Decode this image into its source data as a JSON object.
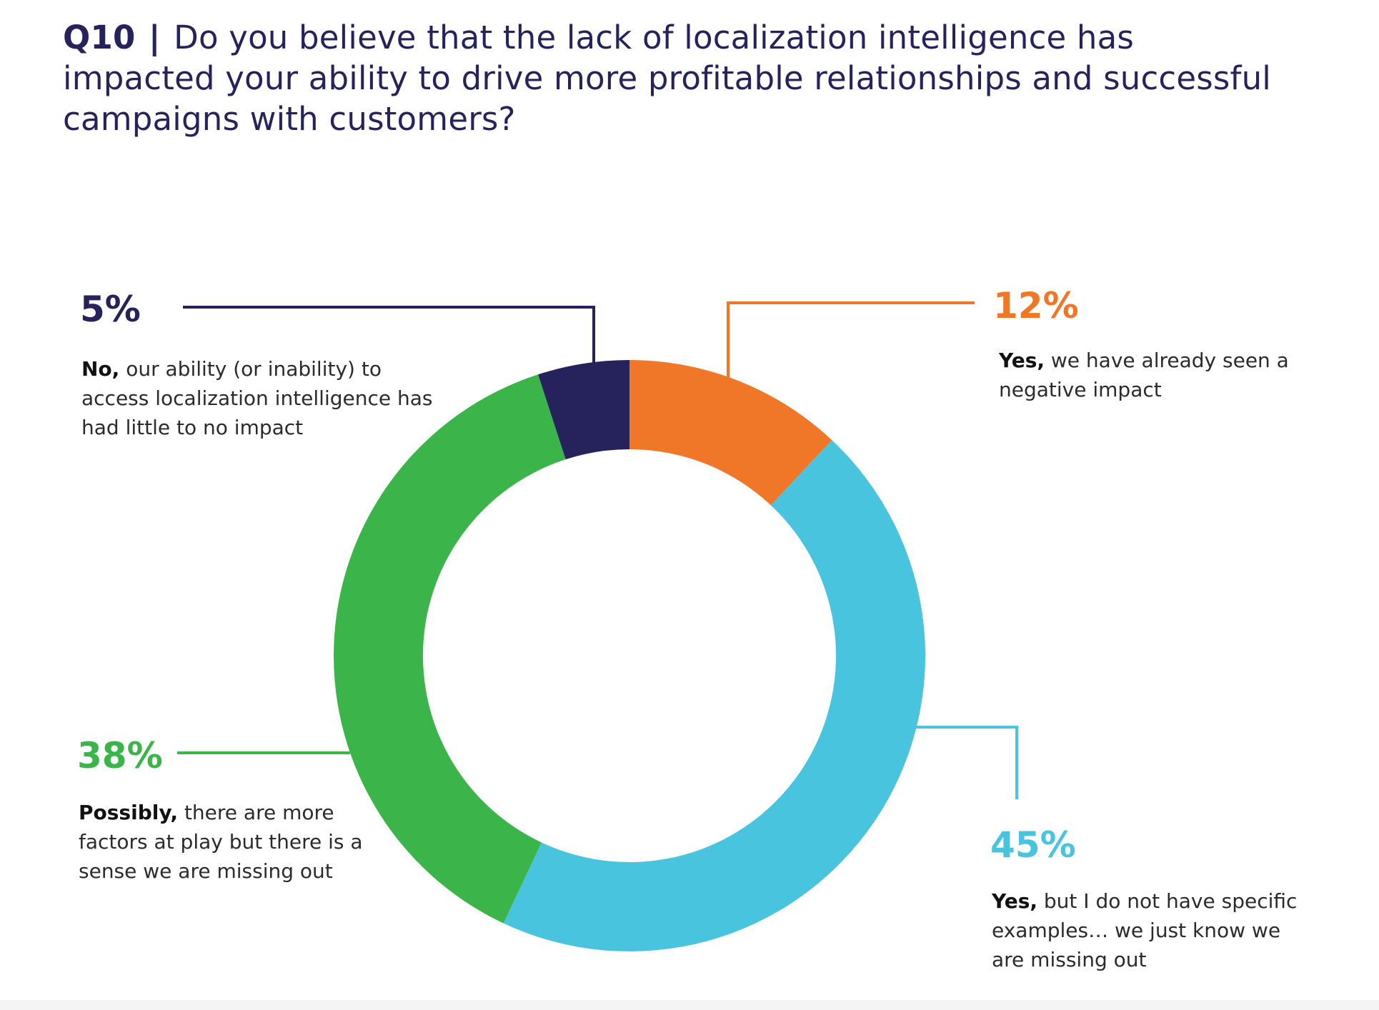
{
  "title": {
    "number": "Q10",
    "separator": "|",
    "text": "Do you believe that the lack of localization intelligence has impacted your ability to drive more profitable relationships and successful campaigns with customers?"
  },
  "chart_data": {
    "type": "pie",
    "title": "Q10 | Do you believe that the lack of localization intelligence has impacted your ability to drive more profitable relationships and successful campaigns with customers?",
    "slices": [
      {
        "value": 12,
        "label": "12%",
        "lead": "Yes,",
        "text": "we have already seen a negative impact",
        "color": "#f07628"
      },
      {
        "value": 45,
        "label": "45%",
        "lead": "Yes,",
        "text": "but I do not have specific examples… we just know we are missing out",
        "color": "#48c4df"
      },
      {
        "value": 38,
        "label": "38%",
        "lead": "Possibly,",
        "text": "there are more factors at play but there is a sense we are missing out",
        "color": "#3bb54a"
      },
      {
        "value": 5,
        "label": "5%",
        "lead": "No,",
        "text": "our ability (or inability) to access localization intelligence has had little to no impact",
        "color": "#25225c"
      }
    ]
  }
}
